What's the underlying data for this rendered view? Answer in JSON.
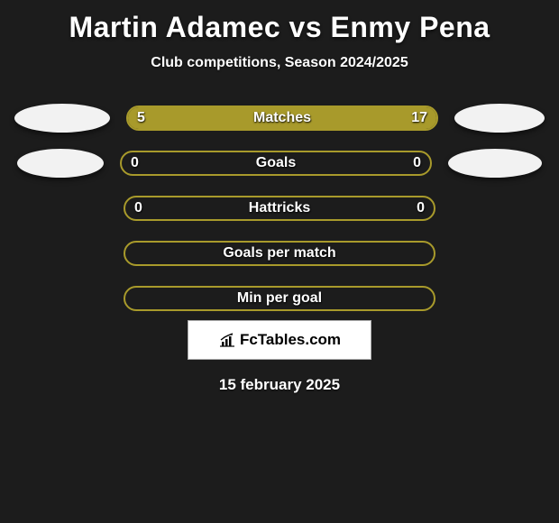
{
  "title": "Martin Adamec vs Enmy Pena",
  "subtitle": "Club competitions, Season 2024/2025",
  "date": "15 february 2025",
  "logo": {
    "text": "FcTables.com"
  },
  "colors": {
    "background": "#1c1c1c",
    "bar_border": "#a89a2b",
    "bar_fill": "#a89a2b",
    "text": "#ffffff",
    "ellipse": "#f2f2f2"
  },
  "rows": [
    {
      "label": "Matches",
      "left_value": "5",
      "right_value": "17",
      "left_num": 5,
      "right_num": 17,
      "has_left_ellipse": true,
      "has_right_ellipse": true,
      "show_values": true,
      "left_pct": 22.7,
      "right_pct": 77.3
    },
    {
      "label": "Goals",
      "left_value": "0",
      "right_value": "0",
      "left_num": 0,
      "right_num": 0,
      "has_left_ellipse": true,
      "has_right_ellipse": true,
      "show_values": true,
      "left_pct": 0,
      "right_pct": 0
    },
    {
      "label": "Hattricks",
      "left_value": "0",
      "right_value": "0",
      "left_num": 0,
      "right_num": 0,
      "has_left_ellipse": false,
      "has_right_ellipse": false,
      "show_values": true,
      "left_pct": 0,
      "right_pct": 0
    },
    {
      "label": "Goals per match",
      "left_value": "",
      "right_value": "",
      "has_left_ellipse": false,
      "has_right_ellipse": false,
      "show_values": false,
      "left_pct": 0,
      "right_pct": 0
    },
    {
      "label": "Min per goal",
      "left_value": "",
      "right_value": "",
      "has_left_ellipse": false,
      "has_right_ellipse": false,
      "show_values": false,
      "left_pct": 0,
      "right_pct": 0
    }
  ]
}
